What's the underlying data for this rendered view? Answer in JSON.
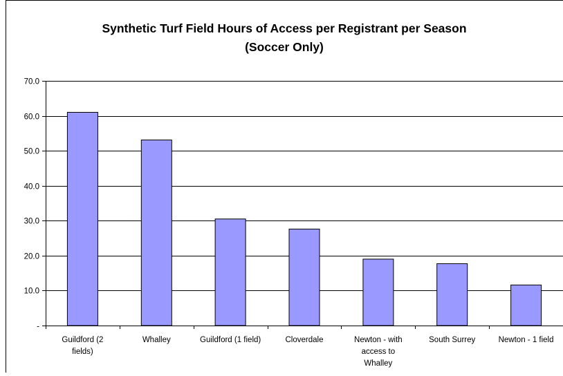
{
  "chart_data": {
    "type": "bar",
    "title_line1": "Synthetic Turf Field Hours of Access per Registrant per Season",
    "title_line2": "(Soccer Only)",
    "categories": [
      [
        "Guildford (2",
        "fields)"
      ],
      [
        "Whalley"
      ],
      [
        "Guildford (1 field)"
      ],
      [
        "Cloverdale"
      ],
      [
        "Newton - with",
        "access to",
        "Whalley"
      ],
      [
        "South Surrey"
      ],
      [
        "Newton - 1 field"
      ]
    ],
    "values": [
      61.0,
      53.1,
      30.5,
      27.6,
      19.0,
      17.7,
      11.6
    ],
    "ylim": [
      0,
      70
    ],
    "ytick_values": [
      0,
      10,
      20,
      30,
      40,
      50,
      60,
      70
    ],
    "ytick_labels": [
      "-",
      "10.0",
      "20.0",
      "30.0",
      "40.0",
      "50.0",
      "60.0",
      "70.0"
    ],
    "grid": true,
    "bar_color": "#9999FF",
    "bar_edge_color": "#000000"
  }
}
